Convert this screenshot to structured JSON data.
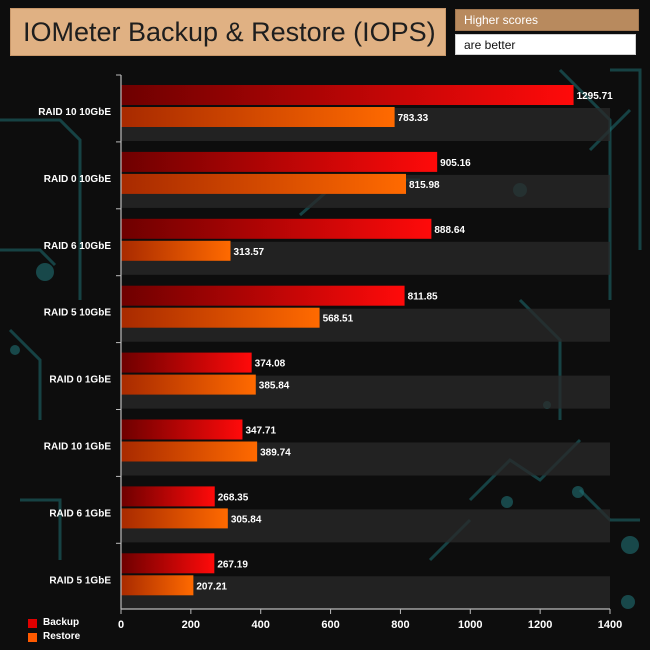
{
  "header": {
    "title": "IOMeter Backup & Restore (IOPS)",
    "note_line1": "Higher scores",
    "note_line2": "are better"
  },
  "colors": {
    "backup": "#e00000",
    "restore": "#ff5a00",
    "background": "#0d0d0d",
    "title_box": "#e0b183",
    "circuit": "#1f6f73"
  },
  "chart_data": {
    "type": "bar",
    "orientation": "horizontal",
    "title": "IOMeter Backup & Restore (IOPS)",
    "categories": [
      "RAID 10 10GbE",
      "RAID 0 10GbE",
      "RAID 6 10GbE",
      "RAID 5 10GbE",
      "RAID 0 1GbE",
      "RAID 10 1GbE",
      "RAID 6 1GbE",
      "RAID 5 1GbE"
    ],
    "series": [
      {
        "name": "Backup",
        "color": "#e00000",
        "values": [
          1295.71,
          905.16,
          888.64,
          811.85,
          374.08,
          347.71,
          268.35,
          267.19
        ]
      },
      {
        "name": "Restore",
        "color": "#ff5a00",
        "values": [
          783.33,
          815.98,
          313.57,
          568.51,
          385.84,
          389.74,
          305.84,
          207.21
        ]
      }
    ],
    "value_labels": {
      "Backup": [
        "1295.71",
        "905.16",
        "888.64",
        "811.85",
        "374.08",
        "347.71",
        "268.35",
        "267.19"
      ],
      "Restore": [
        "783.33",
        "815.98",
        "313.57",
        "568.51",
        "385.84",
        "389.74",
        "305.84",
        "207.21"
      ]
    },
    "xlim": [
      0,
      1400
    ],
    "xticks": [
      0,
      200,
      400,
      600,
      800,
      1000,
      1200,
      1400
    ],
    "xtick_labels": [
      "0",
      "200",
      "400",
      "600",
      "800",
      "1000",
      "1200",
      "1400"
    ],
    "grid": false,
    "legend": {
      "position": "bottom-left",
      "entries": [
        "Backup",
        "Restore"
      ]
    }
  }
}
